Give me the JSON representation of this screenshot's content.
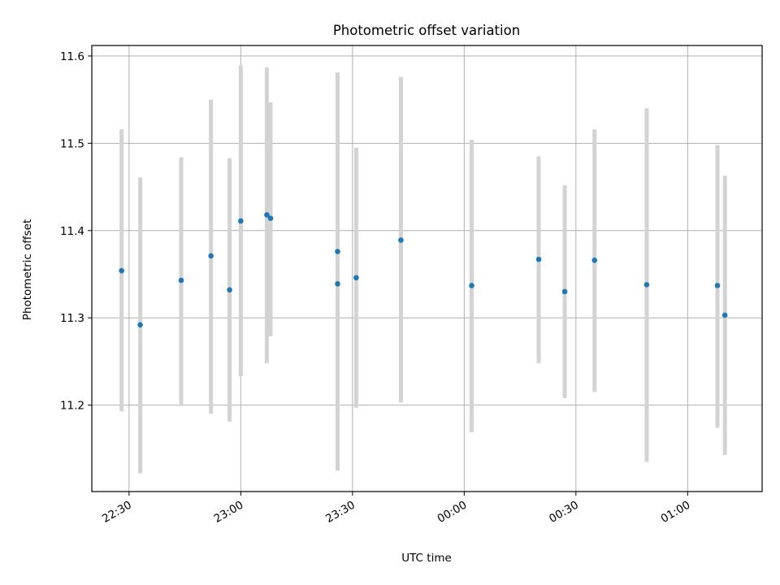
{
  "chart_data": {
    "type": "scatter",
    "title": "Photometric offset variation",
    "xlabel": "UTC time",
    "ylabel": "Photometric offset",
    "x_is_time": true,
    "xlim": [
      "22:20",
      "01:20"
    ],
    "ylim": [
      11.101,
      11.612
    ],
    "xticks": [
      "22:30",
      "23:00",
      "23:30",
      "00:00",
      "00:30",
      "01:00"
    ],
    "yticks": [
      "11.2",
      "11.3",
      "11.4",
      "11.5",
      "11.6"
    ],
    "grid": true,
    "legend": "none",
    "colors": {
      "point": "#1f77b4",
      "errorbar": "#d3d3d3",
      "grid": "#b0b0b0"
    },
    "points": [
      {
        "x": "22:28",
        "y": 11.354,
        "ylow": 11.193,
        "yhigh": 11.516
      },
      {
        "x": "22:33",
        "y": 11.292,
        "ylow": 11.122,
        "yhigh": 11.461
      },
      {
        "x": "22:44",
        "y": 11.343,
        "ylow": 11.201,
        "yhigh": 11.484
      },
      {
        "x": "22:52",
        "y": 11.371,
        "ylow": 11.19,
        "yhigh": 11.55
      },
      {
        "x": "22:57",
        "y": 11.332,
        "ylow": 11.181,
        "yhigh": 11.483
      },
      {
        "x": "23:00",
        "y": 11.411,
        "ylow": 11.233,
        "yhigh": 11.589
      },
      {
        "x": "23:07",
        "y": 11.418,
        "ylow": 11.248,
        "yhigh": 11.587
      },
      {
        "x": "23:08",
        "y": 11.414,
        "ylow": 11.279,
        "yhigh": 11.547
      },
      {
        "x": "23:26",
        "y": 11.339,
        "ylow": 11.125,
        "yhigh": 11.553
      },
      {
        "x": "23:26",
        "y": 11.376,
        "ylow": 11.173,
        "yhigh": 11.581
      },
      {
        "x": "23:31",
        "y": 11.346,
        "ylow": 11.197,
        "yhigh": 11.495
      },
      {
        "x": "23:43",
        "y": 11.389,
        "ylow": 11.203,
        "yhigh": 11.576
      },
      {
        "x": "00:02",
        "y": 11.337,
        "ylow": 11.169,
        "yhigh": 11.504
      },
      {
        "x": "00:20",
        "y": 11.367,
        "ylow": 11.248,
        "yhigh": 11.485
      },
      {
        "x": "00:27",
        "y": 11.33,
        "ylow": 11.208,
        "yhigh": 11.452
      },
      {
        "x": "00:35",
        "y": 11.366,
        "ylow": 11.215,
        "yhigh": 11.516
      },
      {
        "x": "00:49",
        "y": 11.338,
        "ylow": 11.135,
        "yhigh": 11.54
      },
      {
        "x": "01:08",
        "y": 11.337,
        "ylow": 11.174,
        "yhigh": 11.498
      },
      {
        "x": "01:10",
        "y": 11.303,
        "ylow": 11.143,
        "yhigh": 11.463
      }
    ]
  }
}
